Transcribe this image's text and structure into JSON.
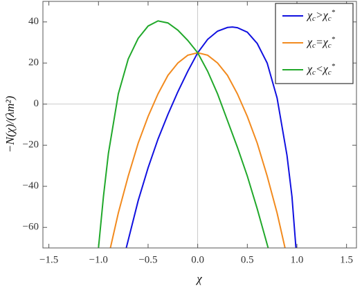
{
  "chart_data": {
    "type": "line",
    "xlabel": "χ",
    "ylabel": "−N(χ)/(λm²)",
    "xlim": [
      -1.56,
      1.6
    ],
    "ylim": [
      -70,
      50
    ],
    "xticks": [
      {
        "value": -1.5,
        "label": "−1.5"
      },
      {
        "value": -1,
        "label": "−1.0"
      },
      {
        "value": -0.5,
        "label": "−0.5"
      },
      {
        "value": 0,
        "label": "0.0"
      },
      0.5,
      {
        "value": 1,
        "label": "1.0"
      },
      1.5
    ],
    "yticks": [
      {
        "value": -60,
        "label": "−60"
      },
      {
        "value": -40,
        "label": "−40"
      },
      {
        "value": -20,
        "label": "−20"
      },
      0,
      20,
      40
    ],
    "legend": "upper right",
    "series": [
      {
        "name": "χc>χc*",
        "color": "#1010e0",
        "x": [
          -0.72,
          -0.6,
          -0.5,
          -0.4,
          -0.3,
          -0.2,
          -0.1,
          0,
          0.1,
          0.2,
          0.3,
          0.35,
          0.4,
          0.5,
          0.6,
          0.7,
          0.8,
          0.9,
          0.95,
          0.99
        ],
        "values": [
          -70,
          -47,
          -31,
          -17,
          -5,
          6,
          16,
          25,
          31.5,
          35.5,
          37.3,
          37.5,
          37.2,
          35,
          29.5,
          20,
          3,
          -25,
          -45,
          -70
        ]
      },
      {
        "name": "χc=χc*",
        "color": "#f28a1e",
        "x": [
          -0.88,
          -0.8,
          -0.7,
          -0.6,
          -0.5,
          -0.4,
          -0.3,
          -0.2,
          -0.1,
          0,
          0.1,
          0.2,
          0.3,
          0.4,
          0.5,
          0.6,
          0.7,
          0.8,
          0.88
        ],
        "values": [
          -70,
          -53,
          -35,
          -19,
          -6,
          5,
          14,
          20,
          23.8,
          25,
          23.8,
          20,
          14,
          5,
          -6,
          -19,
          -35,
          -53,
          -70
        ]
      },
      {
        "name": "χc<χc*",
        "color": "#20a82a",
        "x": [
          -1.0,
          -0.95,
          -0.9,
          -0.8,
          -0.7,
          -0.6,
          -0.5,
          -0.4,
          -0.3,
          -0.2,
          -0.1,
          0,
          0.1,
          0.2,
          0.3,
          0.4,
          0.5,
          0.6,
          0.71
        ],
        "values": [
          -70,
          -45,
          -24,
          5,
          22,
          32,
          38,
          40.5,
          39.5,
          36,
          31,
          25,
          16,
          5,
          -8,
          -21,
          -35,
          -51,
          -70
        ]
      }
    ]
  }
}
